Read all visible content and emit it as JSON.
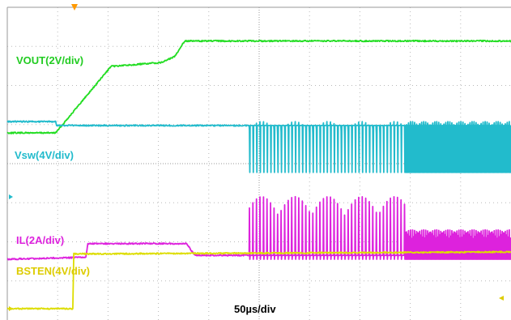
{
  "chart_data": {
    "type": "line",
    "title": "",
    "xlabel": "50µs/div",
    "ylabel": "",
    "grid": true,
    "x_unit": "µs",
    "x_per_div": 50,
    "x_divisions": 10,
    "y_divisions": 8,
    "series": [
      {
        "name": "VOUT(2V/div)",
        "color": "#22dd22",
        "volts_per_div": 2,
        "ref_div": 0,
        "points": [
          [
            0,
            0
          ],
          [
            48,
            0
          ],
          [
            103,
            3.4
          ],
          [
            153,
            3.6
          ],
          [
            166,
            3.9
          ],
          [
            176,
            4.7
          ],
          [
            500,
            4.7
          ]
        ]
      },
      {
        "name": "Vsw(4V/div)",
        "color": "#22bbcc",
        "volts_per_div": 4,
        "ref_div": 0,
        "points": [
          [
            0,
            4.8
          ],
          [
            48,
            4.8
          ],
          [
            49,
            4.4
          ],
          [
            240,
            4.4
          ]
        ],
        "switching": [
          {
            "start_us": 240,
            "end_us": 395,
            "period_us": 3.5,
            "high_v": 4.8,
            "low_v": -0.4
          },
          {
            "start_us": 395,
            "end_us": 500,
            "period_us": 1.0,
            "high_v": 4.8,
            "low_v": -0.4
          }
        ]
      },
      {
        "name": "IL(2A/div)",
        "color": "#dd22dd",
        "volts_per_div": 2,
        "ref_div": 0,
        "points": [
          [
            0,
            0
          ],
          [
            78,
            0.1
          ],
          [
            80,
            0.8
          ],
          [
            178,
            0.8
          ],
          [
            186,
            0.2
          ],
          [
            240,
            0.2
          ]
        ],
        "switching": [
          {
            "start_us": 240,
            "end_us": 395,
            "period_us": 3.5,
            "high_v": 3.2,
            "low_v": 0
          },
          {
            "start_us": 395,
            "end_us": 500,
            "period_us": 1.0,
            "high_v": 1.5,
            "low_v": 0
          }
        ]
      },
      {
        "name": "BSTEN(4V/div)",
        "color": "#dddd00",
        "volts_per_div": 4,
        "ref_div": 0,
        "points": [
          [
            0,
            0
          ],
          [
            65,
            0
          ],
          [
            66,
            5.6
          ],
          [
            500,
            5.8
          ]
        ]
      }
    ]
  }
}
